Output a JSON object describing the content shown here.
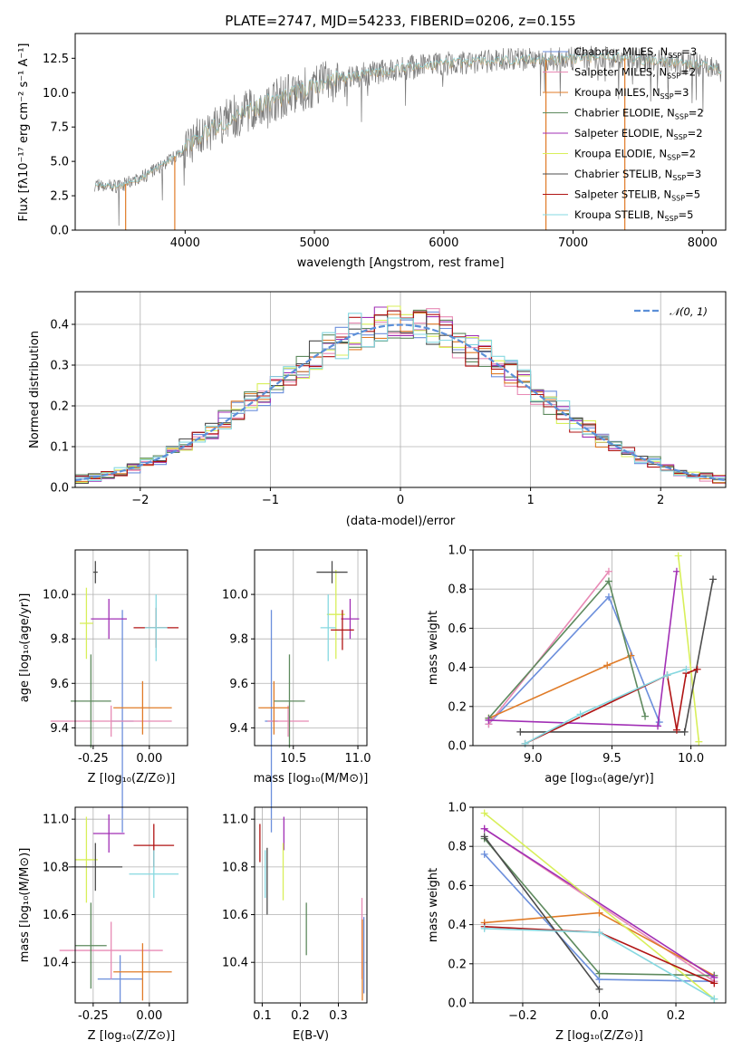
{
  "colors": {
    "Chabrier MILES": "#6c8fdc",
    "Salpeter MILES": "#e88ab5",
    "Kroupa MILES": "#e07b27",
    "Chabrier ELODIE": "#5e8a5e",
    "Salpeter ELODIE": "#a12fb5",
    "Kroupa ELODIE": "#d8ef5a",
    "Chabrier STELIB": "#4c4c4c",
    "Salpeter STELIB": "#b01414",
    "Kroupa STELIB": "#86d8e0",
    "data": "#7a7a7a",
    "gaussian": "#5b8fd8"
  },
  "chart_data": [
    {
      "id": "spectrum",
      "type": "line",
      "title": "PLATE=2747, MJD=54233, FIBERID=0206, z=0.155",
      "xlabel": "wavelength [Angstrom, rest frame]",
      "ylabel": "Flux [fλ10⁻¹⁷ erg cm⁻² s⁻¹ A⁻¹]",
      "xlim": [
        3150,
        8180
      ],
      "ylim": [
        0,
        14.3
      ],
      "xticks": [
        "4000",
        "5000",
        "6000",
        "7000",
        "8000"
      ],
      "yticks": [
        "0.0",
        "2.5",
        "5.0",
        "7.5",
        "10.0",
        "12.5"
      ],
      "legend_position": "right",
      "legend": [
        {
          "name": "Chabrier MILES",
          "label": "Chabrier MILES, N",
          "sub": "SSP",
          "tail": "=3"
        },
        {
          "name": "Salpeter MILES",
          "label": "Salpeter MILES, N",
          "sub": "SSP",
          "tail": "=2"
        },
        {
          "name": "Kroupa MILES",
          "label": "Kroupa MILES, N",
          "sub": "SSP",
          "tail": "=3"
        },
        {
          "name": "Chabrier ELODIE",
          "label": "Chabrier ELODIE, N",
          "sub": "SSP",
          "tail": "=2"
        },
        {
          "name": "Salpeter ELODIE",
          "label": "Salpeter ELODIE, N",
          "sub": "SSP",
          "tail": "=2"
        },
        {
          "name": "Kroupa ELODIE",
          "label": "Kroupa ELODIE, N",
          "sub": "SSP",
          "tail": "=2"
        },
        {
          "name": "Chabrier STELIB",
          "label": "Chabrier STELIB, N",
          "sub": "SSP",
          "tail": "=3"
        },
        {
          "name": "Salpeter STELIB",
          "label": "Salpeter STELIB, N",
          "sub": "SSP",
          "tail": "=5"
        },
        {
          "name": "Kroupa STELIB",
          "label": "Kroupa STELIB, N",
          "sub": "SSP",
          "tail": "=5"
        }
      ],
      "continuum_x": [
        3300,
        3500,
        3700,
        3900,
        4100,
        4300,
        4500,
        4700,
        4900,
        5100,
        5300,
        5500,
        5700,
        5900,
        6100,
        6300,
        6500,
        6700,
        6900,
        7100,
        7300,
        7500,
        7800,
        8000,
        8150
      ],
      "continuum_y": [
        3.3,
        3.2,
        4.0,
        5.2,
        6.8,
        7.9,
        8.8,
        9.5,
        10.2,
        10.8,
        11.2,
        11.5,
        11.8,
        12.0,
        12.2,
        12.3,
        12.4,
        12.4,
        12.4,
        12.5,
        12.6,
        12.4,
        12.2,
        12.0,
        11.6
      ],
      "drops_to_zero": [
        3540,
        3920,
        6790,
        7400
      ]
    },
    {
      "id": "residuals",
      "type": "histogram",
      "xlabel": "(data-model)/error",
      "ylabel": "Normed distribution",
      "xlim": [
        -2.5,
        2.5
      ],
      "ylim": [
        0,
        0.48
      ],
      "xticks": [
        -2,
        -1,
        0,
        1,
        2
      ],
      "yticks": [
        "0.0",
        "0.1",
        "0.2",
        "0.3",
        "0.4"
      ],
      "legend": [
        "𝒩(0, 1)"
      ],
      "legend_position": "top-right",
      "bin_width": 0.1,
      "gaussian": {
        "mean": 0,
        "sigma": 1
      }
    },
    {
      "id": "age-vs-Z",
      "type": "errorbar",
      "xlabel": "Z [log₁₀(Z/Z⊙)]",
      "ylabel": "age  [log₁₀(age/yr)]",
      "xlim": [
        -0.33,
        0.17
      ],
      "ylim": [
        9.32,
        10.2
      ],
      "xticks": [
        "-0.25",
        "0.00"
      ],
      "xtick_values": [
        -0.25,
        0.0
      ],
      "yticks": [
        "9.4",
        "9.6",
        "9.8",
        "10.0"
      ],
      "ytick_values": [
        9.4,
        9.6,
        9.8,
        10.0
      ],
      "points": [
        {
          "model": "Chabrier MILES",
          "x": -0.12,
          "y": 9.43,
          "xerr": 0.05,
          "yerr": 0.5
        },
        {
          "model": "Salpeter MILES",
          "x": -0.17,
          "y": 9.43,
          "xerr": 0.27,
          "yerr": 0.07
        },
        {
          "model": "Kroupa MILES",
          "x": -0.03,
          "y": 9.49,
          "xerr": 0.13,
          "yerr": 0.12
        },
        {
          "model": "Chabrier ELODIE",
          "x": -0.26,
          "y": 9.52,
          "xerr": 0.09,
          "yerr": 0.21
        },
        {
          "model": "Salpeter ELODIE",
          "x": -0.18,
          "y": 9.89,
          "xerr": 0.08,
          "yerr": 0.09
        },
        {
          "model": "Kroupa ELODIE",
          "x": -0.28,
          "y": 9.87,
          "xerr": 0.03,
          "yerr": 0.16
        },
        {
          "model": "Chabrier STELIB",
          "x": -0.24,
          "y": 10.1,
          "xerr": 0.01,
          "yerr": 0.05
        },
        {
          "model": "Salpeter STELIB",
          "x": 0.03,
          "y": 9.85,
          "xerr": 0.1,
          "yerr": 0.09
        },
        {
          "model": "Kroupa STELIB",
          "x": 0.03,
          "y": 9.85,
          "xerr": 0.05,
          "yerr": 0.15
        }
      ]
    },
    {
      "id": "age-vs-mass",
      "type": "errorbar",
      "xlabel": "mass [log₁₀(M/M⊙)]",
      "ylabel": "",
      "xlim": [
        10.2,
        11.07
      ],
      "ylim": [
        9.32,
        10.2
      ],
      "xticks": [
        "10.5",
        "11.0"
      ],
      "xtick_values": [
        10.5,
        11.0
      ],
      "yticks": [
        "9.4",
        "9.6",
        "9.8",
        "10.0"
      ],
      "ytick_values": [
        9.4,
        9.6,
        9.8,
        10.0
      ],
      "points": [
        {
          "model": "Chabrier MILES",
          "x": 10.33,
          "y": 9.43,
          "xerr": 0.05,
          "yerr": 0.5
        },
        {
          "model": "Salpeter MILES",
          "x": 10.46,
          "y": 9.43,
          "xerr": 0.16,
          "yerr": 0.07
        },
        {
          "model": "Kroupa MILES",
          "x": 10.35,
          "y": 9.49,
          "xerr": 0.12,
          "yerr": 0.12
        },
        {
          "model": "Chabrier ELODIE",
          "x": 10.47,
          "y": 9.52,
          "xerr": 0.12,
          "yerr": 0.21
        },
        {
          "model": "Salpeter ELODIE",
          "x": 10.94,
          "y": 9.89,
          "xerr": 0.07,
          "yerr": 0.09
        },
        {
          "model": "Kroupa ELODIE",
          "x": 10.83,
          "y": 9.91,
          "xerr": 0.07,
          "yerr": 0.2
        },
        {
          "model": "Chabrier STELIB",
          "x": 10.8,
          "y": 10.1,
          "xerr": 0.12,
          "yerr": 0.05
        },
        {
          "model": "Salpeter STELIB",
          "x": 10.88,
          "y": 9.84,
          "xerr": 0.09,
          "yerr": 0.09
        },
        {
          "model": "Kroupa STELIB",
          "x": 10.77,
          "y": 9.85,
          "xerr": 0.06,
          "yerr": 0.15
        }
      ]
    },
    {
      "id": "weight-vs-age",
      "type": "line",
      "xlabel": "age  [log₁₀(age/yr)]",
      "ylabel": "mass weight",
      "xlim": [
        8.62,
        10.22
      ],
      "ylim": [
        0,
        1.0
      ],
      "xticks": [
        "9.0",
        "9.5",
        "10.0"
      ],
      "xtick_values": [
        9.0,
        9.5,
        10.0
      ],
      "yticks": [
        "0.0",
        "0.2",
        "0.4",
        "0.6",
        "0.8",
        "1.0"
      ],
      "ytick_values": [
        0,
        0.2,
        0.4,
        0.6,
        0.8,
        1.0
      ],
      "series": [
        {
          "model": "Chabrier MILES",
          "x": [
            8.72,
            9.48,
            9.8
          ],
          "y": [
            0.11,
            0.76,
            0.12
          ]
        },
        {
          "model": "Salpeter MILES",
          "x": [
            8.72,
            9.48
          ],
          "y": [
            0.11,
            0.89
          ]
        },
        {
          "model": "Kroupa MILES",
          "x": [
            8.72,
            9.47,
            9.62
          ],
          "y": [
            0.14,
            0.41,
            0.46
          ]
        },
        {
          "model": "Chabrier ELODIE",
          "x": [
            8.72,
            9.48,
            9.71
          ],
          "y": [
            0.14,
            0.84,
            0.15
          ]
        },
        {
          "model": "Salpeter ELODIE",
          "x": [
            8.72,
            9.79,
            9.91
          ],
          "y": [
            0.13,
            0.1,
            0.89
          ]
        },
        {
          "model": "Kroupa ELODIE",
          "x": [
            9.92,
            10.05
          ],
          "y": [
            0.97,
            0.02
          ]
        },
        {
          "model": "Chabrier STELIB",
          "x": [
            8.92,
            9.96,
            10.14
          ],
          "y": [
            0.07,
            0.07,
            0.85
          ]
        },
        {
          "model": "Salpeter STELIB",
          "x": [
            8.95,
            9.85,
            9.91,
            9.97,
            10.04
          ],
          "y": [
            0.01,
            0.36,
            0.08,
            0.37,
            0.39
          ]
        },
        {
          "model": "Kroupa STELIB",
          "x": [
            8.95,
            9.3,
            9.85,
            9.97
          ],
          "y": [
            0.01,
            0.16,
            0.36,
            0.39
          ]
        }
      ]
    },
    {
      "id": "mass-vs-Z",
      "type": "errorbar",
      "xlabel": "Z [log₁₀(Z/Z⊙)]",
      "ylabel": "mass [log₁₀(M/M⊙)]",
      "xlim": [
        -0.33,
        0.17
      ],
      "ylim": [
        10.23,
        11.05
      ],
      "xticks": [
        "-0.25",
        "0.00"
      ],
      "xtick_values": [
        -0.25,
        0.0
      ],
      "yticks": [
        "10.4",
        "10.6",
        "10.8",
        "11.0"
      ],
      "ytick_values": [
        10.4,
        10.6,
        10.8,
        11.0
      ],
      "points": [
        {
          "model": "Chabrier MILES",
          "x": -0.13,
          "y": 10.33,
          "xerr": 0.1,
          "yerr": 0.1
        },
        {
          "model": "Salpeter MILES",
          "x": -0.17,
          "y": 10.45,
          "xerr": 0.23,
          "yerr": 0.12
        },
        {
          "model": "Kroupa MILES",
          "x": -0.03,
          "y": 10.36,
          "xerr": 0.13,
          "yerr": 0.12
        },
        {
          "model": "Chabrier ELODIE",
          "x": -0.26,
          "y": 10.47,
          "xerr": 0.07,
          "yerr": 0.18
        },
        {
          "model": "Salpeter ELODIE",
          "x": -0.18,
          "y": 10.94,
          "xerr": 0.07,
          "yerr": 0.08
        },
        {
          "model": "Kroupa ELODIE",
          "x": -0.28,
          "y": 10.83,
          "xerr": 0.05,
          "yerr": 0.18
        },
        {
          "model": "Chabrier STELIB",
          "x": -0.24,
          "y": 10.8,
          "xerr": 0.12,
          "yerr": 0.1
        },
        {
          "model": "Salpeter STELIB",
          "x": 0.02,
          "y": 10.89,
          "xerr": 0.09,
          "yerr": 0.09
        },
        {
          "model": "Kroupa STELIB",
          "x": 0.02,
          "y": 10.77,
          "xerr": 0.11,
          "yerr": 0.1
        }
      ]
    },
    {
      "id": "mass-vs-ebv",
      "type": "errorbar",
      "xlabel": "E(B-V)",
      "ylabel": "",
      "xlim": [
        0.08,
        0.375
      ],
      "ylim": [
        10.23,
        11.05
      ],
      "xticks": [
        "0.1",
        "0.2",
        "0.3"
      ],
      "xtick_values": [
        0.1,
        0.2,
        0.3
      ],
      "yticks": [
        "10.4",
        "10.6",
        "10.8",
        "11.0"
      ],
      "ytick_values": [
        10.4,
        10.6,
        10.8,
        11.0
      ],
      "points": [
        {
          "model": "Chabrier MILES",
          "x": 0.367,
          "y": 10.43,
          "xerr": 0,
          "yerr": 0.16
        },
        {
          "model": "Salpeter MILES",
          "x": 0.362,
          "y": 10.5,
          "xerr": 0,
          "yerr": 0.17
        },
        {
          "model": "Kroupa MILES",
          "x": 0.363,
          "y": 10.41,
          "xerr": 0,
          "yerr": 0.17
        },
        {
          "model": "Chabrier ELODIE",
          "x": 0.216,
          "y": 10.54,
          "xerr": 0,
          "yerr": 0.11
        },
        {
          "model": "Salpeter ELODIE",
          "x": 0.157,
          "y": 10.94,
          "xerr": 0,
          "yerr": 0.07
        },
        {
          "model": "Kroupa ELODIE",
          "x": 0.155,
          "y": 10.78,
          "xerr": 0,
          "yerr": 0.12
        },
        {
          "model": "Chabrier STELIB",
          "x": 0.113,
          "y": 10.74,
          "xerr": 0,
          "yerr": 0.14
        },
        {
          "model": "Salpeter STELIB",
          "x": 0.094,
          "y": 10.9,
          "xerr": 0,
          "yerr": 0.08
        },
        {
          "model": "Kroupa STELIB",
          "x": 0.108,
          "y": 10.77,
          "xerr": 0,
          "yerr": 0.1
        }
      ]
    },
    {
      "id": "weight-vs-Z",
      "type": "line",
      "xlabel": "Z [log₁₀(Z/Z⊙)]",
      "ylabel": "mass weight",
      "xlim": [
        -0.33,
        0.33
      ],
      "ylim": [
        0,
        1.0
      ],
      "xticks": [
        "−0.2",
        "0.0",
        "0.2"
      ],
      "xtick_values": [
        -0.2,
        0.0,
        0.2
      ],
      "yticks": [
        "0.0",
        "0.2",
        "0.4",
        "0.6",
        "0.8",
        "1.0"
      ],
      "ytick_values": [
        0,
        0.2,
        0.4,
        0.6,
        0.8,
        1.0
      ],
      "series": [
        {
          "model": "Chabrier MILES",
          "x": [
            -0.3,
            0.0,
            0.3
          ],
          "y": [
            0.76,
            0.12,
            0.11
          ]
        },
        {
          "model": "Salpeter MILES",
          "x": [
            -0.3,
            0.3
          ],
          "y": [
            0.89,
            0.11
          ]
        },
        {
          "model": "Kroupa MILES",
          "x": [
            -0.3,
            0.0,
            0.3
          ],
          "y": [
            0.41,
            0.46,
            0.14
          ]
        },
        {
          "model": "Chabrier ELODIE",
          "x": [
            -0.3,
            0.0,
            0.3
          ],
          "y": [
            0.84,
            0.15,
            0.14
          ]
        },
        {
          "model": "Salpeter ELODIE",
          "x": [
            -0.3,
            0.3
          ],
          "y": [
            0.89,
            0.13
          ]
        },
        {
          "model": "Kroupa ELODIE",
          "x": [
            -0.3,
            0.3
          ],
          "y": [
            0.97,
            0.02
          ]
        },
        {
          "model": "Chabrier STELIB",
          "x": [
            -0.3,
            0.0
          ],
          "y": [
            0.85,
            0.07
          ]
        },
        {
          "model": "Salpeter STELIB",
          "x": [
            -0.3,
            0.0,
            0.3
          ],
          "y": [
            0.39,
            0.36,
            0.1
          ]
        },
        {
          "model": "Kroupa STELIB",
          "x": [
            -0.3,
            0.0,
            0.3
          ],
          "y": [
            0.38,
            0.36,
            0.02
          ]
        }
      ]
    }
  ]
}
